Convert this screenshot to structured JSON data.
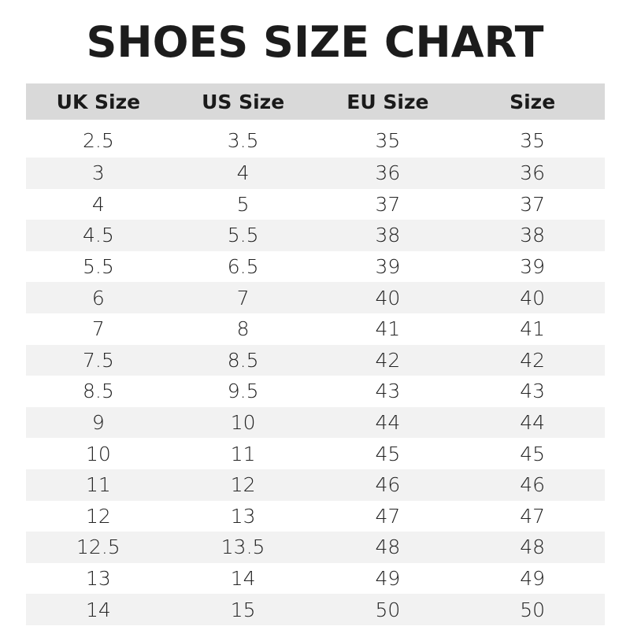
{
  "title": "SHOES SIZE CHART",
  "columns": [
    "UK Size",
    "US Size",
    "EU Size",
    "Size"
  ],
  "rows": [
    [
      "2.5",
      "3.5",
      "35",
      "35"
    ],
    [
      "3",
      "4",
      "36",
      "36"
    ],
    [
      "4",
      "5",
      "37",
      "37"
    ],
    [
      "4.5",
      "5.5",
      "38",
      "38"
    ],
    [
      "5.5",
      "6.5",
      "39",
      "39"
    ],
    [
      "6",
      "7",
      "40",
      "40"
    ],
    [
      "7",
      "8",
      "41",
      "41"
    ],
    [
      "7.5",
      "8.5",
      "42",
      "42"
    ],
    [
      "8.5",
      "9.5",
      "43",
      "43"
    ],
    [
      "9",
      "10",
      "44",
      "44"
    ],
    [
      "10",
      "11",
      "45",
      "45"
    ],
    [
      "11",
      "12",
      "46",
      "46"
    ],
    [
      "12",
      "13",
      "47",
      "47"
    ],
    [
      "12.5",
      "13.5",
      "48",
      "48"
    ],
    [
      "13",
      "14",
      "49",
      "49"
    ],
    [
      "14",
      "15",
      "50",
      "50"
    ]
  ],
  "colors": {
    "header_bg": "#d9d9d9",
    "stripe_bg": "#f2f2f2",
    "text": "#1a1a1a"
  }
}
